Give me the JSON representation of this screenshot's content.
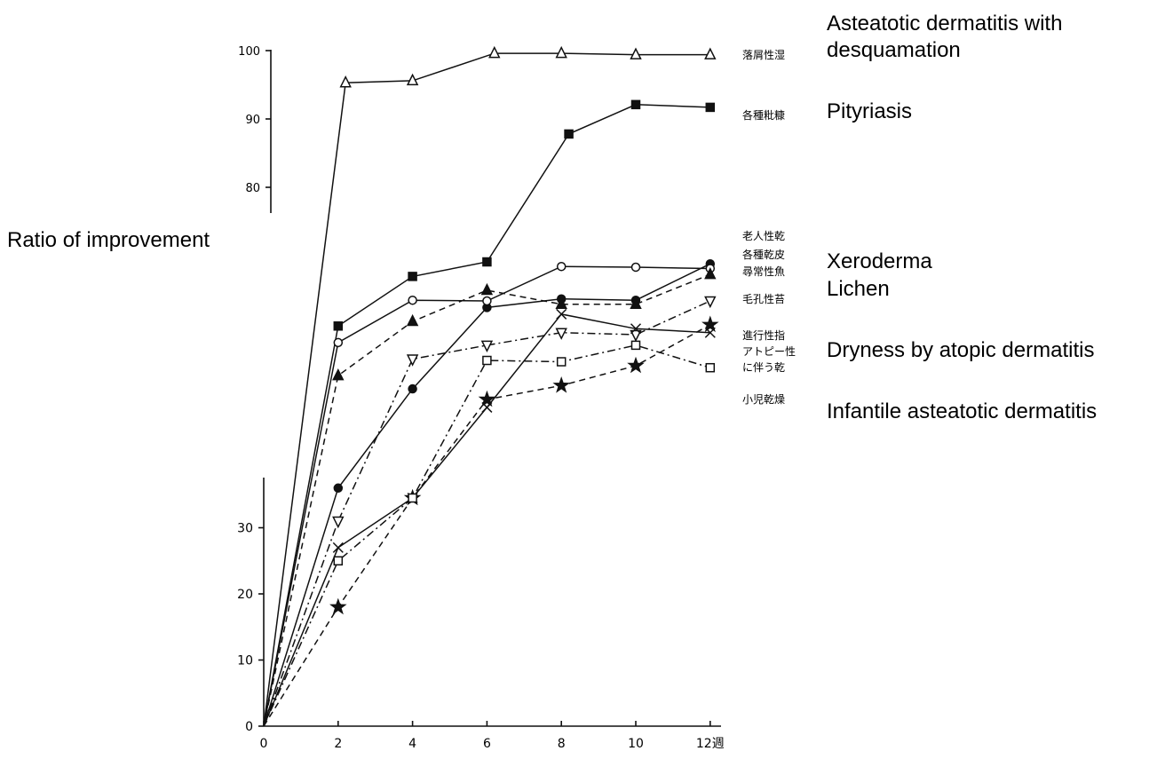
{
  "chart_data": {
    "type": "line",
    "ylabel": "Ratio of improvement",
    "x_tick_labels": [
      "0",
      "2",
      "4",
      "6",
      "8",
      "10",
      "12週"
    ],
    "y_tick_labels_upper": [
      "100",
      "90",
      "80"
    ],
    "y_tick_labels_lower": [
      "0",
      "10",
      "20",
      "30"
    ],
    "series": [
      {
        "key": "s1",
        "jp_label": "落屑性湿",
        "marker": "triangle-open",
        "dash": "solid",
        "x": [
          0,
          2.2,
          4,
          6.2,
          8,
          10,
          12
        ],
        "y": [
          0,
          95.3,
          95.6,
          99.6,
          99.6,
          99.4,
          99.4
        ]
      },
      {
        "key": "s2",
        "jp_label": "各種粃糠",
        "marker": "square-filled",
        "dash": "solid",
        "x": [
          0,
          2,
          4,
          6,
          8.2,
          10,
          12
        ],
        "y": [
          0,
          60.5,
          68,
          70.2,
          87.8,
          92.1,
          91.7
        ]
      },
      {
        "key": "s3",
        "jp_label": "老人性乾",
        "marker": "circle-filled",
        "dash": "solid",
        "x": [
          0,
          2,
          4,
          6,
          8,
          10,
          12
        ],
        "y": [
          0,
          36,
          51,
          63.3,
          64.6,
          64.4,
          69.9
        ]
      },
      {
        "key": "s4",
        "jp_label": "各種乾皮",
        "marker": "circle-open",
        "dash": "solid",
        "x": [
          0,
          2,
          4,
          6,
          8,
          10,
          12
        ],
        "y": [
          0,
          58,
          64.4,
          64.3,
          69.5,
          69.4,
          69.2
        ]
      },
      {
        "key": "s5",
        "jp_label": "尋常性魚",
        "marker": "triangle-filled",
        "dash": "dashed",
        "x": [
          0,
          2,
          4,
          6,
          8,
          10,
          12
        ],
        "y": [
          0,
          53,
          61.2,
          65.9,
          63.8,
          63.8,
          68.3
        ]
      },
      {
        "key": "s6",
        "jp_label": "毛孔性苔",
        "marker": "triangle-down-open",
        "dash": "dashdot",
        "x": [
          0,
          2,
          4,
          6,
          8,
          10,
          12
        ],
        "y": [
          0,
          31,
          55.5,
          57.6,
          59.5,
          59.2,
          64.3
        ]
      },
      {
        "key": "s7",
        "jp_label": "進行性指",
        "marker": "star",
        "dash": "dashed",
        "x": [
          0,
          2,
          4,
          6,
          8,
          10,
          12
        ],
        "y": [
          0,
          18,
          34.5,
          49.4,
          51.5,
          54.5,
          60.7
        ]
      },
      {
        "key": "s8",
        "jp_label": "アトピー性 に伴う乾",
        "marker": "cross",
        "dash": "solid",
        "x": [
          0,
          2,
          4,
          6,
          8,
          10,
          12
        ],
        "y": [
          0,
          27,
          34.5,
          48.2,
          62.3,
          60.1,
          59.5
        ]
      },
      {
        "key": "s9",
        "jp_label": "小児乾燥",
        "marker": "square-open",
        "dash": "dashdot",
        "x": [
          0,
          2,
          4,
          6,
          8,
          10,
          12
        ],
        "y": [
          0,
          25,
          34.5,
          55.3,
          55.1,
          57.6,
          54.2
        ]
      }
    ],
    "english_labels": [
      "Asteatotic dermatitis with desquamation",
      "Pityriasis",
      "Xeroderma",
      "Lichen",
      "Dryness by atopic dermatitis",
      "Infantile asteatotic dermatitis"
    ]
  }
}
